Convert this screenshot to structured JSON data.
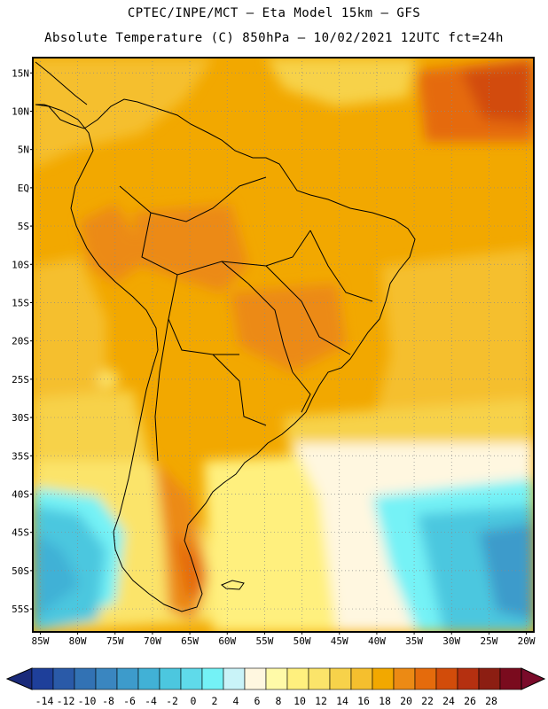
{
  "header": {
    "line1": "CPTEC/INPE/MCT –  Eta Model 15km – GFS",
    "line2": "Absolute Temperature (C) 850hPa – 10/02/2021 12UTC fct=24h"
  },
  "map": {
    "lon_range": [
      -86,
      -19
    ],
    "lat_range": [
      -58,
      17
    ],
    "lat_labels": [
      "15N",
      "10N",
      "5N",
      "EQ",
      "5S",
      "10S",
      "15S",
      "20S",
      "25S",
      "30S",
      "35S",
      "40S",
      "45S",
      "50S",
      "55S"
    ],
    "lat_values": [
      15,
      10,
      5,
      0,
      -5,
      -10,
      -15,
      -20,
      -25,
      -30,
      -35,
      -40,
      -45,
      -50,
      -55
    ],
    "lon_labels": [
      "85W",
      "80W",
      "75W",
      "70W",
      "65W",
      "60W",
      "55W",
      "50W",
      "45W",
      "40W",
      "35W",
      "30W",
      "25W",
      "20W"
    ],
    "lon_values": [
      -85,
      -80,
      -75,
      -70,
      -65,
      -60,
      -55,
      -50,
      -45,
      -40,
      -35,
      -30,
      -25,
      -20
    ]
  },
  "colorbar": {
    "labels": [
      "-14",
      "-12",
      "-10",
      "-8",
      "-6",
      "-4",
      "-2",
      "0",
      "2",
      "4",
      "6",
      "8",
      "10",
      "12",
      "14",
      "16",
      "18",
      "20",
      "22",
      "24",
      "26",
      "28"
    ],
    "colors": [
      "#1e3f9a",
      "#2a5aa8",
      "#3272b4",
      "#3a86c0",
      "#3d9bcb",
      "#41b1d6",
      "#4cc7df",
      "#5fdaea",
      "#74f2f6",
      "#c9f3f8",
      "#fff7e0",
      "#fffaa8",
      "#fff07e",
      "#fbe46a",
      "#f7d24a",
      "#f5bf2e",
      "#f2a800",
      "#ec8a14",
      "#e56b0c",
      "#d24c0a",
      "#b53010",
      "#8c1e12",
      "#7a0b1e"
    ],
    "low_color": "#1a2a7a",
    "high_color": "#7a0b2a"
  }
}
